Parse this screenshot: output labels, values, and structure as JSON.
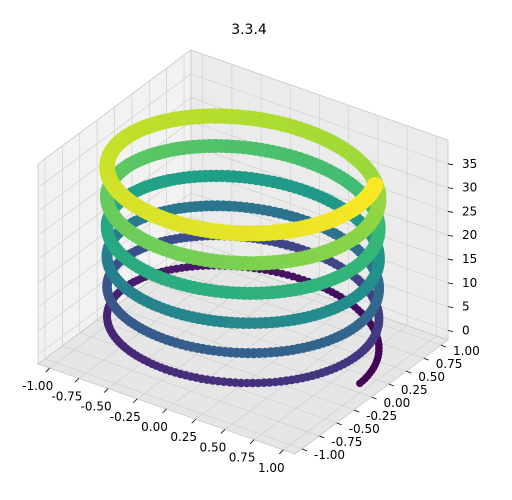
{
  "chart_data": {
    "type": "scatter",
    "title": "3.3.4",
    "xlabel": "",
    "ylabel": "",
    "zlabel": "",
    "colormap": "viridis",
    "grid": true,
    "projection": "3d",
    "xlim": [
      -1.1,
      1.1
    ],
    "ylim": [
      -1.1,
      1.1
    ],
    "zlim": [
      -2,
      40
    ],
    "x_ticks": [
      "-1.00",
      "-0.75",
      "-0.50",
      "-0.25",
      "0.00",
      "0.25",
      "0.50",
      "0.75",
      "1.00"
    ],
    "y_ticks": [
      "-1.00",
      "-0.75",
      "-0.50",
      "-0.25",
      "0.00",
      "0.25",
      "0.50",
      "0.75",
      "1.00"
    ],
    "z_ticks": [
      "0",
      "5",
      "10",
      "15",
      "20",
      "25",
      "30",
      "35"
    ],
    "series": [
      {
        "shape": "helix",
        "x": "cos(t)",
        "y": "sin(t)",
        "z": "t",
        "t_range": [
          0,
          38
        ],
        "point_size_range": [
          5,
          14
        ],
        "color_by": "t"
      }
    ]
  }
}
